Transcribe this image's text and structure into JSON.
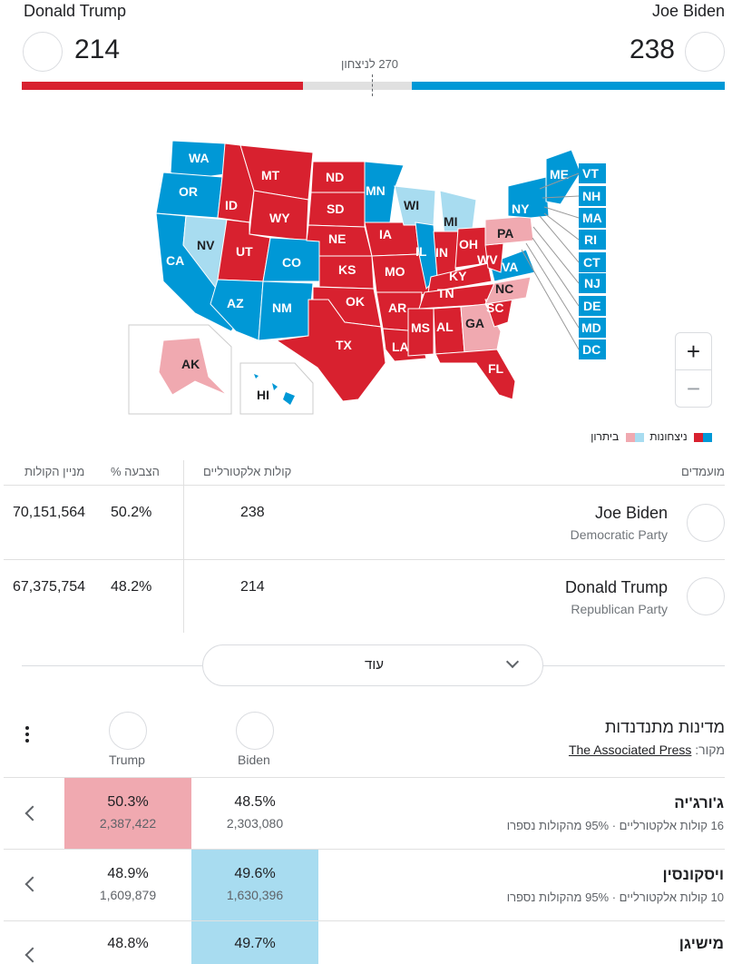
{
  "header": {
    "left_candidate": "Donald Trump",
    "right_candidate": "Joe Biden",
    "left_score": "214",
    "right_score": "238",
    "to_win": "270 לניצחון",
    "trump_fraction": 0.4,
    "biden_fraction": 0.445
  },
  "colors": {
    "rep_win": "#d8212f",
    "rep_lead": "#f0a9b0",
    "dem_win": "#0098d6",
    "dem_lead": "#a8dcf0",
    "neutral": "#e0e0e0"
  },
  "map": {
    "state_labels": [
      "WA",
      "OR",
      "CA",
      "NV",
      "ID",
      "MT",
      "WY",
      "UT",
      "AZ",
      "CO",
      "NM",
      "ND",
      "SD",
      "NE",
      "KS",
      "OK",
      "TX",
      "MN",
      "IA",
      "MO",
      "AR",
      "LA",
      "WI",
      "IL",
      "MI",
      "IN",
      "OH",
      "KY",
      "TN",
      "MS",
      "AL",
      "GA",
      "FL",
      "SC",
      "NC",
      "VA",
      "WV",
      "PA",
      "NY",
      "ME",
      "AK",
      "HI"
    ],
    "small_states": [
      "VT",
      "NH",
      "MA",
      "RI",
      "CT",
      "NJ",
      "DE",
      "MD",
      "DC"
    ],
    "zoom_in": "+",
    "zoom_out": "−",
    "legend_won": "ניצחונות",
    "legend_leading": "ביתרון"
  },
  "results_table": {
    "headers": {
      "candidates": "מועמדים",
      "electoral": "קולות אלקטורליים",
      "pct": "% הצבעה",
      "votes": "מניין הקולות"
    },
    "rows": [
      {
        "name": "Joe Biden",
        "party": "Democratic Party",
        "electoral": "238",
        "pct": "50.2%",
        "votes": "70,151,564"
      },
      {
        "name": "Donald Trump",
        "party": "Republican Party",
        "electoral": "214",
        "pct": "48.2%",
        "votes": "67,375,754"
      }
    ],
    "more_label": "עוד"
  },
  "swing": {
    "title": "מדינות מתנדנדות",
    "source_label": "מקור:",
    "source_name": "The Associated Press",
    "col_trump": "Trump",
    "col_biden": "Biden",
    "states": [
      {
        "name": "ג'ורג'יה",
        "sub": "16 קולות אלקטורליים · 95% מהקולות נספרו",
        "trump_pct": "50.3%",
        "trump_votes": "2,387,422",
        "biden_pct": "48.5%",
        "biden_votes": "2,303,080",
        "leader": "trump"
      },
      {
        "name": "ויסקונסין",
        "sub": "10 קולות אלקטורליים · 95% מהקולות נספרו",
        "trump_pct": "48.9%",
        "trump_votes": "1,609,879",
        "biden_pct": "49.6%",
        "biden_votes": "1,630,396",
        "leader": "biden"
      },
      {
        "name": "מישיגן",
        "sub": "",
        "trump_pct": "48.8%",
        "trump_votes": "",
        "biden_pct": "49.7%",
        "biden_votes": "",
        "leader": "biden"
      }
    ]
  }
}
